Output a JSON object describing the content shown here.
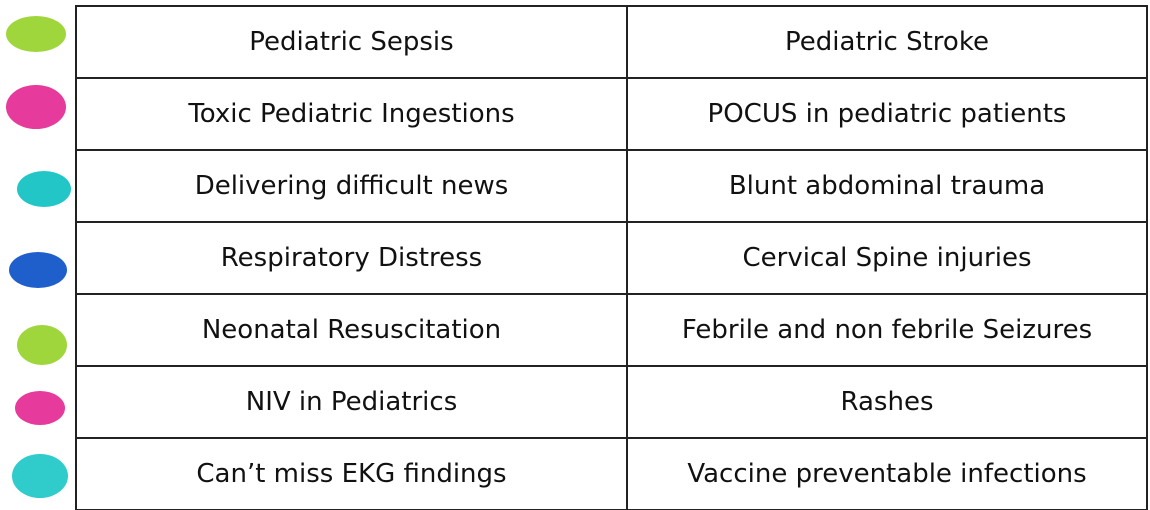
{
  "table": {
    "rows": [
      [
        "Pediatric Sepsis",
        "Pediatric Stroke"
      ],
      [
        "Toxic Pediatric Ingestions",
        "POCUS in pediatric patients"
      ],
      [
        "Delivering difficult news",
        "Blunt abdominal trauma"
      ],
      [
        "Respiratory Distress",
        "Cervical Spine injuries"
      ],
      [
        "Neonatal Resuscitation",
        "Febrile and non febrile Seizures"
      ],
      [
        "NIV in Pediatrics",
        "Rashes"
      ],
      [
        "Can’t miss EKG findings",
        "Vaccine preventable infections"
      ]
    ]
  }
}
